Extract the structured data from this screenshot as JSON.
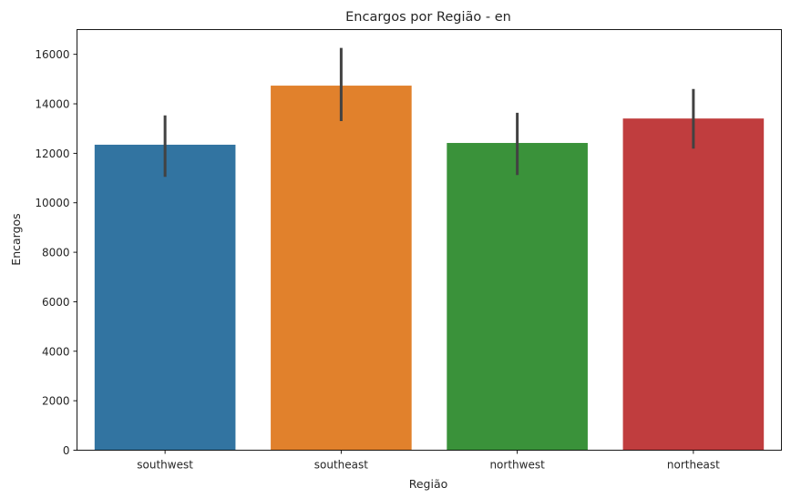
{
  "chart_data": {
    "type": "bar",
    "title": "Encargos por Região - en",
    "xlabel": "Região",
    "ylabel": "Encargos",
    "categories": [
      "southwest",
      "southeast",
      "northwest",
      "northeast"
    ],
    "values": [
      12347,
      14735,
      12418,
      13406
    ],
    "error_low": [
      11050,
      13300,
      11120,
      12190
    ],
    "error_high": [
      13530,
      16260,
      13640,
      14600
    ],
    "colors": [
      "#3274a1",
      "#e1812c",
      "#3a923a",
      "#c03d3e"
    ],
    "ylim": [
      0,
      17000
    ],
    "yticks": [
      0,
      2000,
      4000,
      6000,
      8000,
      10000,
      12000,
      14000,
      16000
    ],
    "grid": false,
    "legend": "none"
  }
}
